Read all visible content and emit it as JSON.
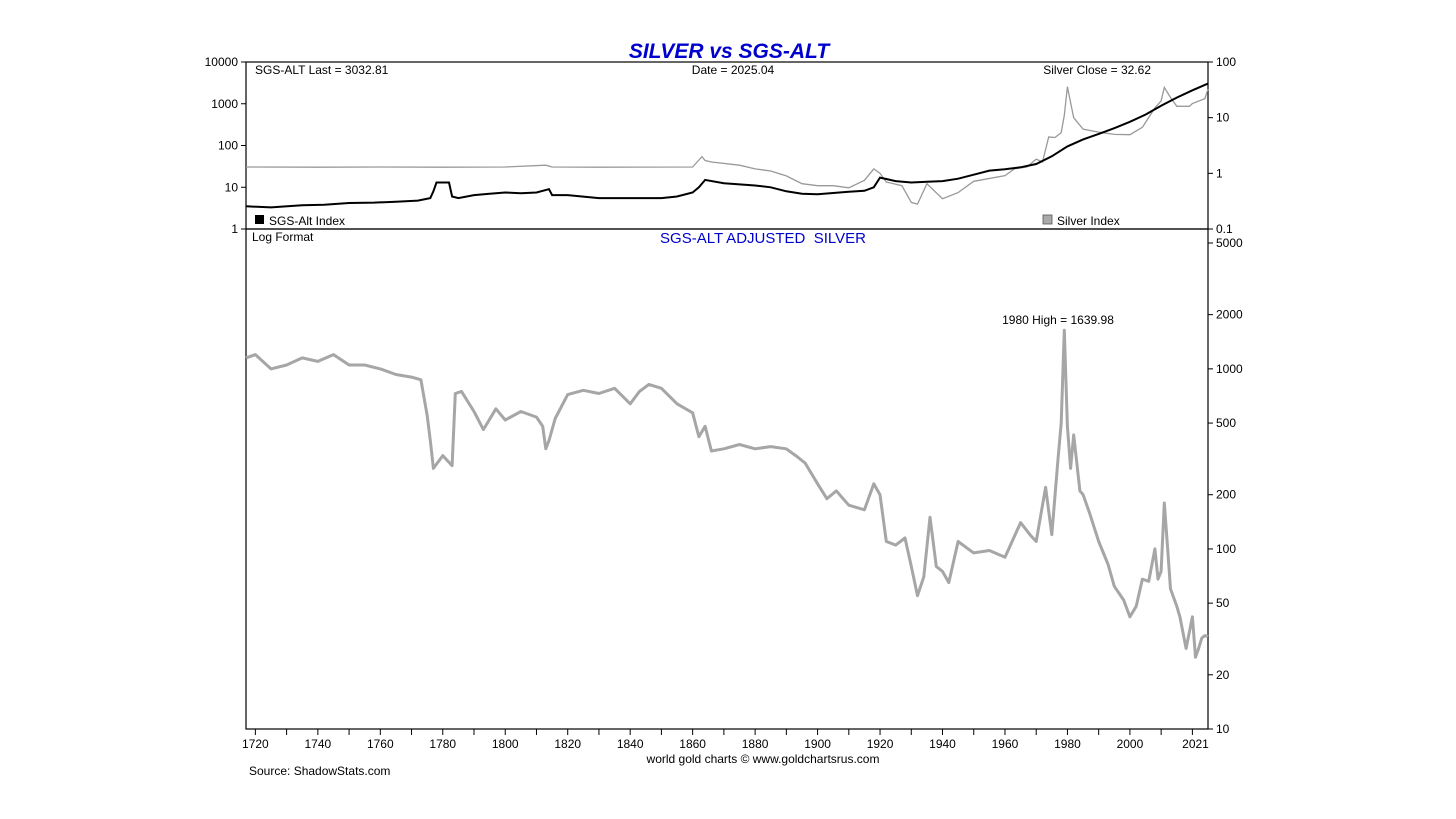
{
  "title": "SILVER vs SGS-ALT",
  "upper_panel": {
    "info_left": "SGS-ALT Last = 3032.81",
    "info_center": "Date = 2025.04",
    "info_right": "Silver Close = 32.62",
    "legend_left": "SGS-Alt Index",
    "legend_right": "Silver Index",
    "left_axis_ticks": [
      "10000",
      "1000",
      "100",
      "10",
      "1"
    ],
    "right_axis_ticks": [
      "100",
      "10",
      "1",
      "0.1"
    ]
  },
  "lower_panel": {
    "format_label": "Log Format",
    "subtitle": "SGS-ALT ADJUSTED  SILVER",
    "annotation": "1980 High = 1639.98",
    "right_axis_ticks": [
      "5000",
      "2000",
      "1000",
      "500",
      "200",
      "100",
      "50",
      "20",
      "10"
    ]
  },
  "x_axis_ticks": [
    "1720",
    "1740",
    "1760",
    "1780",
    "1800",
    "1820",
    "1840",
    "1860",
    "1880",
    "1900",
    "1920",
    "1940",
    "1960",
    "1980",
    "2000",
    "2021"
  ],
  "footer_credit": "world gold charts © www.goldchartsrus.com",
  "source": "Source: ShadowStats.com",
  "colors": {
    "title": "#0000cc",
    "sgs_alt": "#000000",
    "silver": "#999999",
    "adjusted": "#a6a6a6"
  },
  "chart_data": [
    {
      "type": "line",
      "title": "SILVER vs SGS-ALT",
      "x_range": [
        1717,
        2025
      ],
      "y_scale": "log",
      "series": [
        {
          "name": "SGS-Alt Index",
          "axis": "left",
          "ylim": [
            1,
            10000
          ],
          "x": [
            1717,
            1725,
            1735,
            1742,
            1750,
            1758,
            1765,
            1772,
            1776,
            1777,
            1778,
            1782,
            1783,
            1785,
            1790,
            1795,
            1800,
            1805,
            1810,
            1814,
            1815,
            1820,
            1830,
            1840,
            1850,
            1855,
            1860,
            1862,
            1864,
            1870,
            1880,
            1885,
            1890,
            1895,
            1900,
            1905,
            1910,
            1915,
            1918,
            1920,
            1925,
            1930,
            1935,
            1940,
            1945,
            1950,
            1955,
            1960,
            1965,
            1970,
            1975,
            1980,
            1985,
            1990,
            1995,
            2000,
            2005,
            2010,
            2015,
            2020,
            2025
          ],
          "y": [
            3.5,
            3.3,
            3.7,
            3.8,
            4.2,
            4.3,
            4.5,
            4.8,
            5.5,
            8,
            13,
            13,
            6,
            5.5,
            6.5,
            7,
            7.5,
            7.2,
            7.5,
            9,
            6.5,
            6.5,
            5.5,
            5.5,
            5.5,
            6,
            7.5,
            10,
            15,
            12.5,
            11,
            10,
            8,
            7,
            6.8,
            7.3,
            7.8,
            8.2,
            10,
            17,
            14,
            13,
            13.5,
            14,
            16,
            20,
            25,
            27,
            30,
            36,
            55,
            95,
            140,
            190,
            260,
            370,
            550,
            900,
            1400,
            2100,
            3032.81
          ]
        },
        {
          "name": "Silver Index",
          "axis": "right",
          "ylim": [
            0.1,
            100
          ],
          "x": [
            1717,
            1740,
            1760,
            1780,
            1800,
            1813,
            1815,
            1830,
            1860,
            1863,
            1864,
            1866,
            1875,
            1880,
            1885,
            1890,
            1895,
            1900,
            1905,
            1910,
            1915,
            1918,
            1920,
            1922,
            1927,
            1930,
            1932,
            1935,
            1940,
            1945,
            1950,
            1960,
            1963,
            1967,
            1970,
            1972,
            1974,
            1976,
            1978,
            1979,
            1980,
            1982,
            1985,
            1990,
            1995,
            2000,
            2004,
            2008,
            2010,
            2011,
            2013,
            2015,
            2019,
            2020,
            2024,
            2025
          ],
          "y": [
            1.3,
            1.29,
            1.3,
            1.29,
            1.3,
            1.4,
            1.3,
            1.29,
            1.3,
            2,
            1.7,
            1.6,
            1.4,
            1.2,
            1.1,
            0.9,
            0.65,
            0.6,
            0.6,
            0.55,
            0.75,
            1.2,
            1.0,
            0.7,
            0.6,
            0.3,
            0.28,
            0.65,
            0.35,
            0.45,
            0.72,
            0.91,
            1.2,
            1.3,
            1.8,
            1.6,
            4.5,
            4.4,
            5.4,
            11,
            36,
            10,
            6.2,
            5.5,
            5.0,
            4.95,
            6.7,
            15,
            20,
            35,
            23,
            16,
            16,
            18,
            22,
            32.62
          ]
        }
      ]
    },
    {
      "type": "line",
      "title": "SGS-ALT ADJUSTED  SILVER",
      "x_range": [
        1717,
        2025
      ],
      "y_scale": "log",
      "ylim": [
        10,
        5000
      ],
      "series": [
        {
          "name": "SGS-ALT ADJUSTED  SILVER",
          "x": [
            1717,
            1720,
            1725,
            1730,
            1735,
            1740,
            1745,
            1750,
            1755,
            1760,
            1765,
            1770,
            1773,
            1775,
            1776,
            1777,
            1780,
            1783,
            1784,
            1786,
            1790,
            1793,
            1797,
            1800,
            1805,
            1810,
            1812,
            1813,
            1814,
            1816,
            1820,
            1825,
            1830,
            1835,
            1840,
            1843,
            1846,
            1850,
            1855,
            1860,
            1862,
            1864,
            1866,
            1870,
            1875,
            1880,
            1885,
            1890,
            1893,
            1896,
            1900,
            1903,
            1906,
            1910,
            1915,
            1918,
            1920,
            1922,
            1925,
            1928,
            1930,
            1932,
            1934,
            1936,
            1938,
            1940,
            1942,
            1945,
            1950,
            1955,
            1960,
            1965,
            1968,
            1970,
            1973,
            1975,
            1977,
            1978,
            1979,
            1980,
            1981,
            1982,
            1984,
            1985,
            1987,
            1990,
            1993,
            1995,
            1998,
            2000,
            2002,
            2004,
            2006,
            2008,
            2009,
            2010,
            2011,
            2012,
            2013,
            2015,
            2016,
            2018,
            2020,
            2021,
            2022,
            2023,
            2024,
            2025
          ],
          "y": [
            1150,
            1200,
            1000,
            1050,
            1150,
            1100,
            1200,
            1050,
            1050,
            1000,
            930,
            900,
            870,
            550,
            400,
            280,
            330,
            290,
            730,
            750,
            580,
            460,
            600,
            520,
            580,
            540,
            480,
            360,
            400,
            530,
            720,
            760,
            730,
            780,
            640,
            750,
            820,
            780,
            640,
            570,
            420,
            480,
            350,
            360,
            380,
            360,
            370,
            360,
            330,
            300,
            230,
            190,
            210,
            175,
            165,
            230,
            200,
            110,
            105,
            115,
            80,
            55,
            70,
            150,
            80,
            75,
            65,
            110,
            95,
            98,
            90,
            140,
            120,
            110,
            220,
            120,
            320,
            500,
            1639.98,
            480,
            280,
            430,
            210,
            200,
            160,
            110,
            82,
            62,
            52,
            42,
            48,
            68,
            66,
            100,
            68,
            75,
            180,
            105,
            60,
            48,
            42,
            28,
            42,
            25,
            28,
            32,
            33,
            32.62
          ]
        }
      ]
    }
  ]
}
